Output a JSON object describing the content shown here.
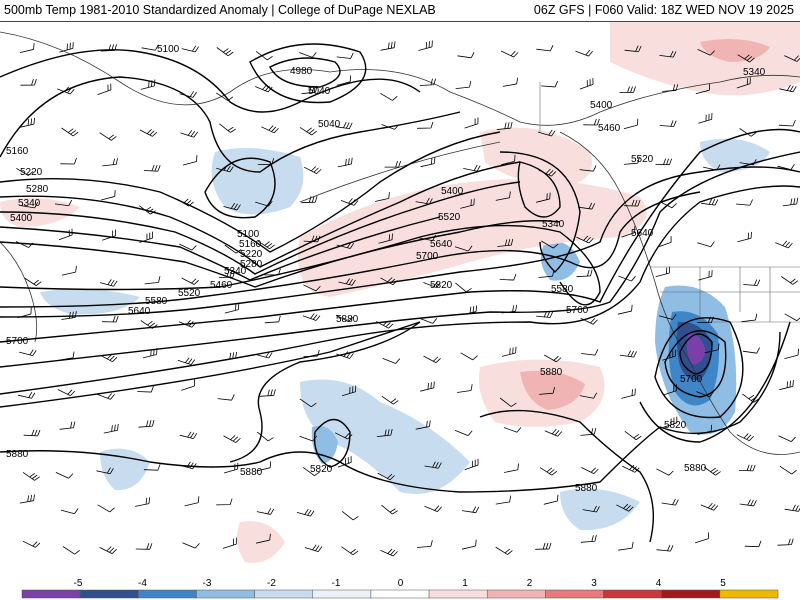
{
  "header": {
    "left_title": "500mb Temp 1981-2010 Standardized Anomaly | College of DuPage NEXLAB",
    "right_title": "06Z GFS | F060 Valid: 18Z WED NOV 19 2025"
  },
  "contour_labels": [
    "5100",
    "4980",
    "5040",
    "5040",
    "5160",
    "5220",
    "5280",
    "5340",
    "5400",
    "5100",
    "5160",
    "5220",
    "5280",
    "5340",
    "5460",
    "5520",
    "5580",
    "5640",
    "5400",
    "5520",
    "5640",
    "5700",
    "5820",
    "5880",
    "5340",
    "5580",
    "5760",
    "5400",
    "5460",
    "5520",
    "5640",
    "5340",
    "5700",
    "5820",
    "5880",
    "5880",
    "5880",
    "5820",
    "5880",
    "5880",
    "5700"
  ],
  "colorbar": {
    "ticks": [
      "-5",
      "-4",
      "-3",
      "-2",
      "-1",
      "0",
      "1",
      "2",
      "3",
      "4",
      "5"
    ],
    "colors": [
      "#7a3fa8",
      "#2f4f8f",
      "#3f86c9",
      "#8fbde3",
      "#c8dcef",
      "#eaf1f8",
      "#ffffff",
      "#f9dede",
      "#f1b4b4",
      "#e57b7b",
      "#c53a3a",
      "#9c1c1c",
      "#f0b800"
    ]
  },
  "palette": {
    "neg_light": "#c8dcef",
    "neg_mid": "#8fbde3",
    "neg_strong": "#3f86c9",
    "neg_deep": "#2f4f8f",
    "neg_extreme": "#7a3fa8",
    "pos_light": "#f9dede",
    "pos_mid": "#f1b4b4",
    "pos_strong": "#e57b7b"
  }
}
